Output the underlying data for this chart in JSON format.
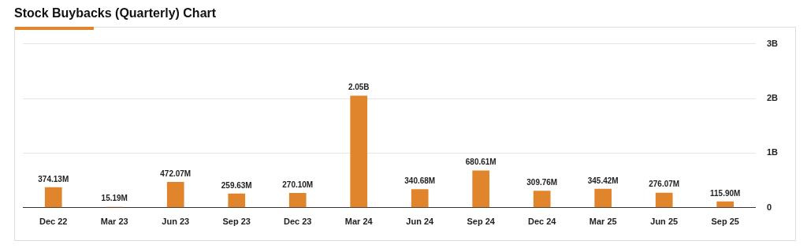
{
  "chart_data": {
    "type": "bar",
    "title": "Stock Buybacks (Quarterly) Chart",
    "categories": [
      "Dec 22",
      "Mar 23",
      "Jun 23",
      "Sep 23",
      "Dec 23",
      "Mar 24",
      "Jun 24",
      "Sep 24",
      "Dec 24",
      "Mar 25",
      "Jun 25",
      "Sep 25"
    ],
    "values": [
      374130000,
      15190000,
      472070000,
      259630000,
      270100000,
      2050000000,
      340680000,
      680610000,
      309760000,
      345420000,
      276070000,
      115900000
    ],
    "value_labels": [
      "374.13M",
      "15.19M",
      "472.07M",
      "259.63M",
      "270.10M",
      "2.05B",
      "340.68M",
      "680.61M",
      "309.76M",
      "345.42M",
      "276.07M",
      "115.90M"
    ],
    "color": "#e0852b",
    "ylim": [
      0,
      3000000000
    ],
    "yticks": [
      0,
      {
        "value": 1000000000,
        "label": "1B"
      },
      {
        "value": 2000000000,
        "label": "2B"
      },
      {
        "value": 3000000000,
        "label": "3B"
      }
    ],
    "grid": "y"
  }
}
